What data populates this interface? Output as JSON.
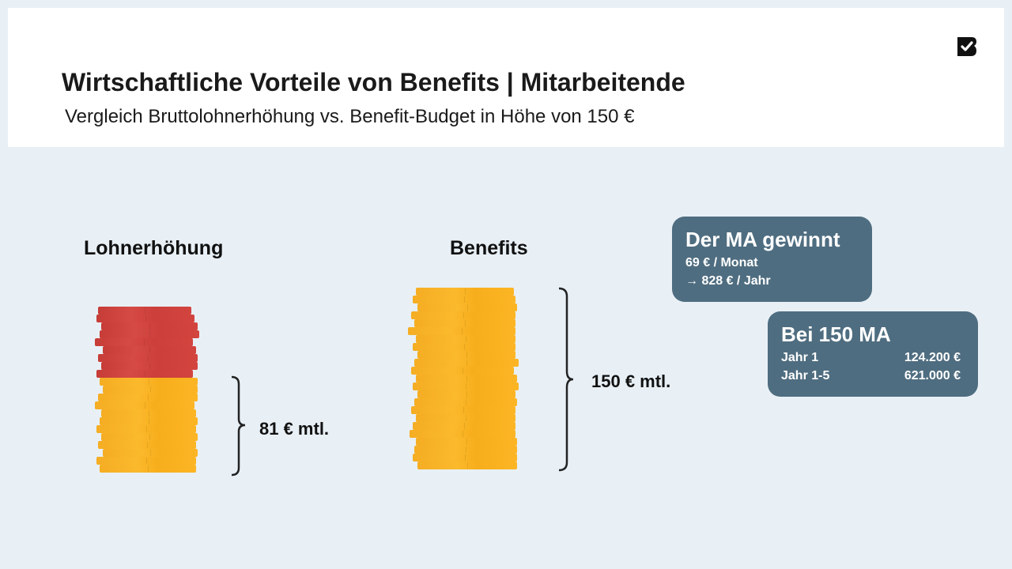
{
  "header": {
    "title": "Wirtschaftliche Vorteile von Benefits | Mitarbeitende",
    "subtitle": "Vergleich Bruttolohnerhöhung vs. Benefit-Budget in Höhe von 150 €",
    "logo_icon": "brand-logo-icon"
  },
  "left_stack": {
    "label": "Lohnerhöhung",
    "bracket_label": "81 € mtl.",
    "red_coins": 9,
    "gold_coins": 12,
    "colors": {
      "red": "#d1433e",
      "gold": "#fbb324"
    }
  },
  "right_stack": {
    "label": "Benefits",
    "bracket_label": "150 € mtl.",
    "gold_coins": 23,
    "colors": {
      "gold": "#fbb324"
    }
  },
  "box_gain": {
    "title": "Der MA gewinnt",
    "line1": "69 € / Monat",
    "line2": "→ 828 € / Jahr",
    "color": "#4f6d80"
  },
  "box_150": {
    "title": "Bei 150 MA",
    "rows": [
      {
        "label": "Jahr 1",
        "value": "124.200 €"
      },
      {
        "label": "Jahr 1-5",
        "value": "621.000 €"
      }
    ],
    "color": "#4f6d80"
  }
}
